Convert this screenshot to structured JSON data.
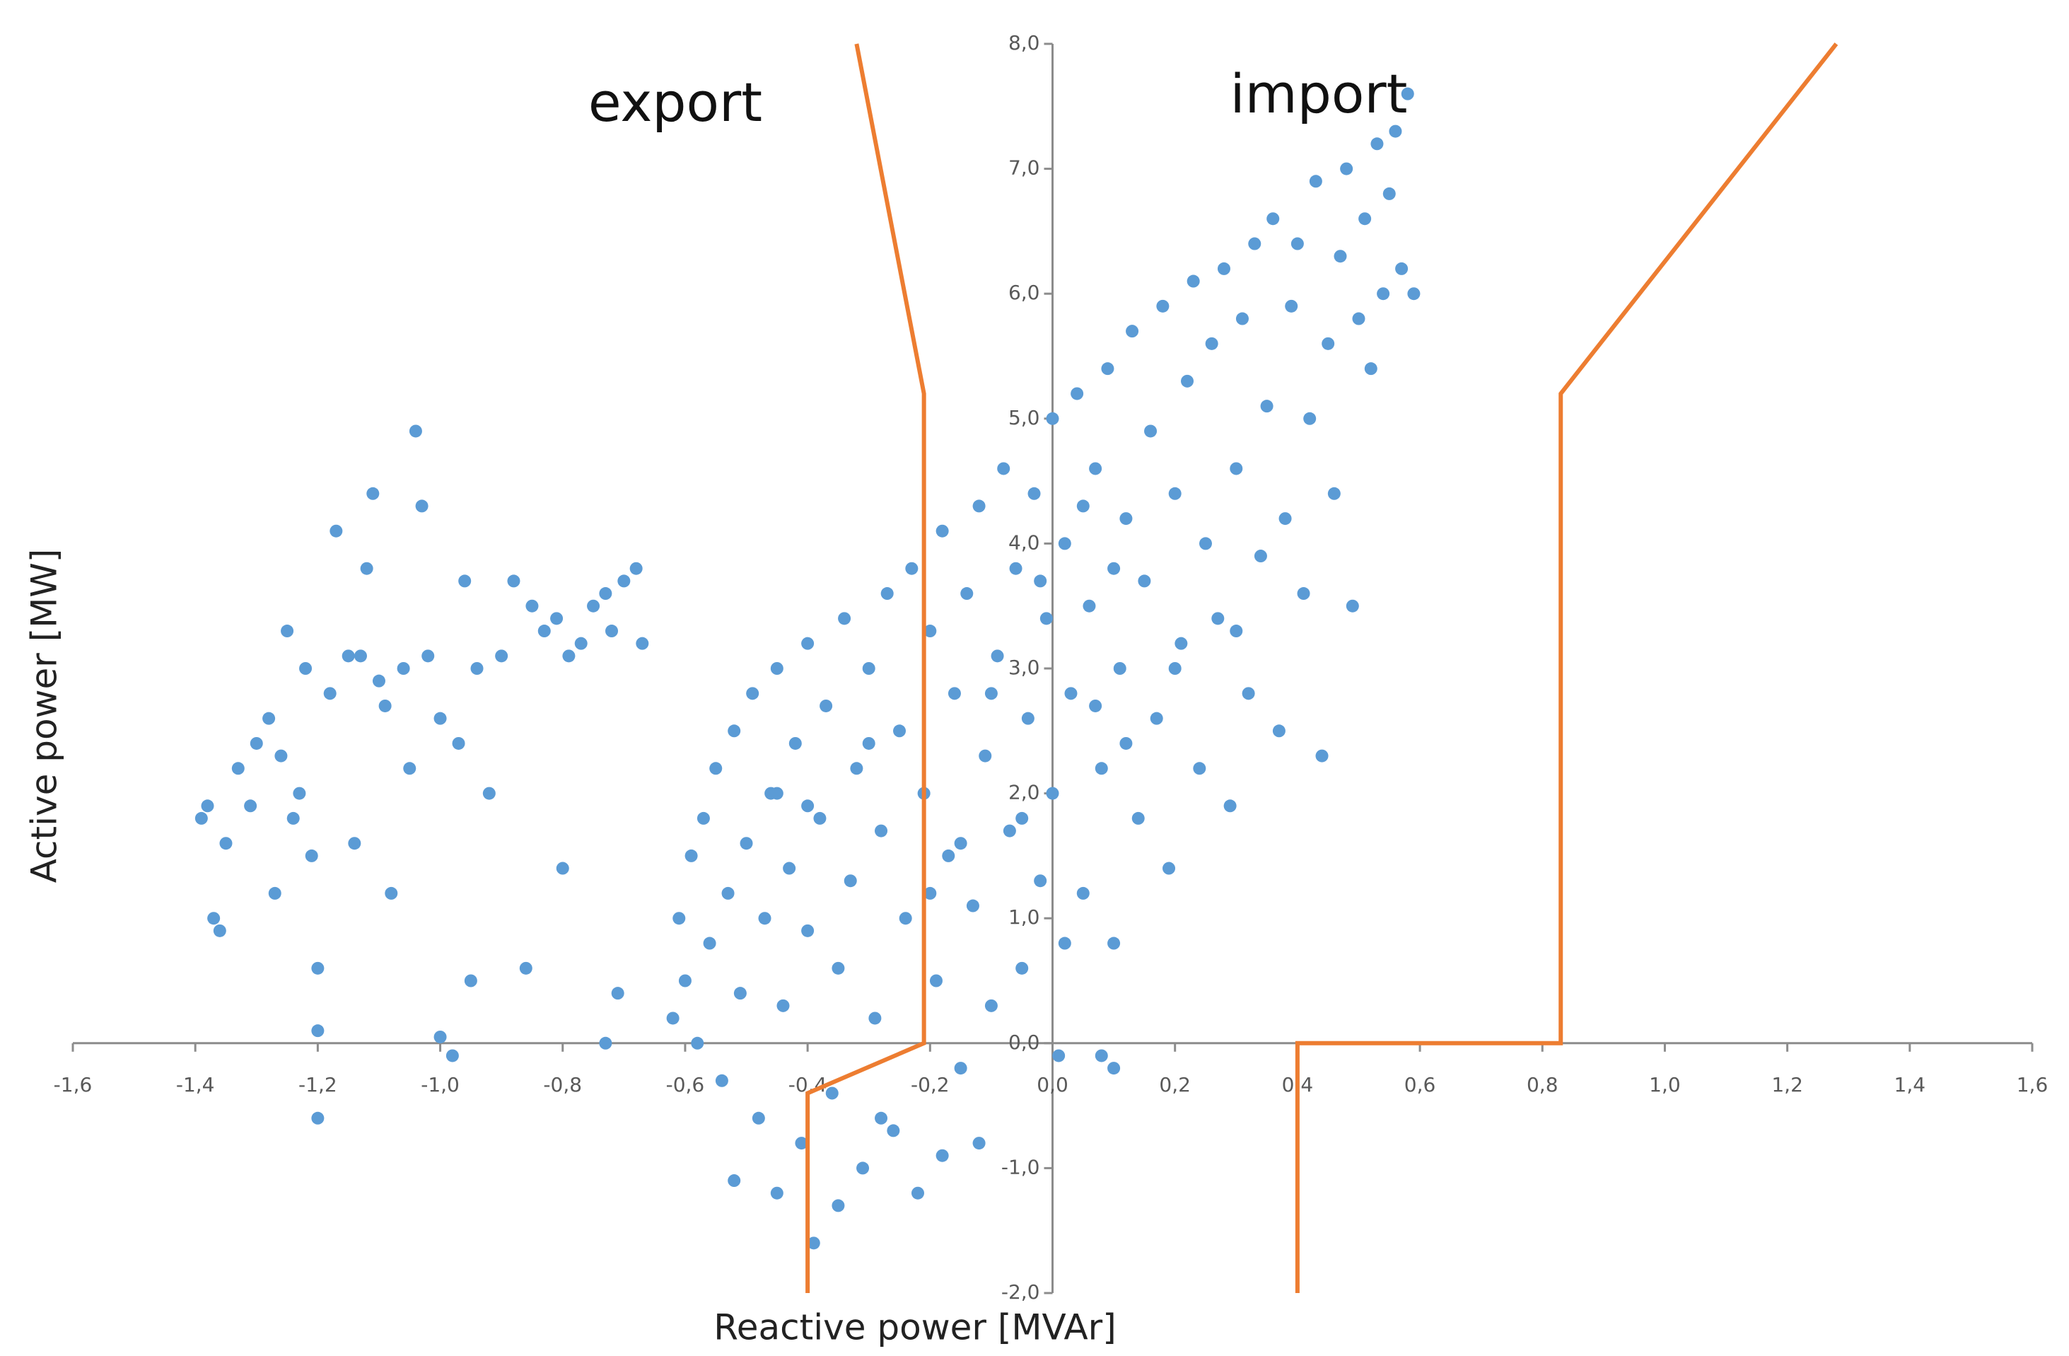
{
  "chart_data": {
    "type": "scatter",
    "xlabel": "Reactive power [MVAr]",
    "ylabel": "Active power [MW]",
    "annotations": [
      "export",
      "import"
    ],
    "color": "#5b9bd5",
    "x": [
      -1.39,
      -1.37,
      -1.36,
      -1.35,
      -1.33,
      -1.31,
      -1.3,
      -1.28,
      -1.27,
      -1.26,
      -1.25,
      -1.23,
      -1.22,
      -1.21,
      -1.2,
      -1.2,
      -1.2,
      -1.18,
      -1.17,
      -1.15,
      -1.14,
      -1.12,
      -1.11,
      -1.1,
      -1.08,
      -1.06,
      -1.05,
      -1.04,
      -1.03,
      -1.02,
      -1.0,
      -1.0,
      -0.98,
      -0.97,
      -0.96,
      -0.95,
      -0.94,
      -0.92,
      -0.9,
      -0.88,
      -0.86,
      -0.85,
      -0.83,
      -0.81,
      -0.8,
      -0.79,
      -0.77,
      -0.75,
      -0.73,
      -0.72,
      -0.7,
      -0.68,
      -0.67,
      -0.73,
      -0.71,
      -1.38,
      -1.24,
      -1.13,
      -1.09,
      -0.62,
      -0.61,
      -0.6,
      -0.59,
      -0.58,
      -0.57,
      -0.56,
      -0.55,
      -0.54,
      -0.53,
      -0.52,
      -0.52,
      -0.51,
      -0.5,
      -0.49,
      -0.48,
      -0.47,
      -0.46,
      -0.45,
      -0.45,
      -0.44,
      -0.43,
      -0.42,
      -0.41,
      -0.4,
      -0.4,
      -0.39,
      -0.38,
      -0.37,
      -0.36,
      -0.35,
      -0.34,
      -0.33,
      -0.32,
      -0.31,
      -0.3,
      -0.29,
      -0.28,
      -0.27,
      -0.26,
      -0.25,
      -0.24,
      -0.23,
      -0.22,
      -0.21,
      -0.2,
      -0.19,
      -0.18,
      -0.17,
      -0.16,
      -0.15,
      -0.14,
      -0.13,
      -0.12,
      -0.11,
      -0.1,
      -0.09,
      -0.08,
      -0.07,
      -0.06,
      -0.05,
      -0.04,
      -0.03,
      -0.02,
      -0.01,
      0.0,
      0.0,
      0.01,
      0.02,
      0.03,
      0.04,
      0.05,
      0.06,
      0.07,
      0.08,
      0.09,
      0.1,
      0.11,
      0.12,
      0.13,
      0.14,
      0.15,
      0.16,
      0.17,
      0.18,
      0.19,
      0.2,
      0.21,
      0.22,
      0.23,
      0.24,
      0.25,
      0.26,
      0.27,
      0.28,
      0.29,
      0.3,
      0.31,
      0.32,
      0.33,
      0.34,
      0.35,
      0.36,
      0.37,
      0.38,
      0.39,
      0.4,
      0.41,
      0.42,
      0.43,
      0.44,
      0.45,
      0.46,
      0.47,
      0.48,
      0.49,
      0.5,
      0.51,
      0.52,
      0.53,
      0.54,
      0.55,
      0.56,
      0.57,
      0.58,
      0.59,
      0.08,
      0.1,
      -0.12,
      -0.18,
      -0.28,
      -0.35,
      0.02,
      -0.05,
      0.07,
      -0.2,
      -0.3,
      -0.45,
      -0.4,
      -0.15,
      0.12,
      0.2,
      0.3,
      0.1,
      -0.1,
      0.05,
      -0.02
    ],
    "y": [
      1.8,
      1.0,
      0.9,
      1.6,
      2.2,
      1.9,
      2.4,
      2.6,
      1.2,
      2.3,
      3.3,
      2.0,
      3.0,
      1.5,
      0.6,
      -0.6,
      0.1,
      2.8,
      4.1,
      3.1,
      1.6,
      3.8,
      4.4,
      2.9,
      1.2,
      3.0,
      2.2,
      4.9,
      4.3,
      3.1,
      2.6,
      0.05,
      -0.1,
      2.4,
      3.7,
      0.5,
      3.0,
      2.0,
      3.1,
      3.7,
      0.6,
      3.5,
      3.3,
      3.4,
      1.4,
      3.1,
      3.2,
      3.5,
      3.6,
      3.3,
      3.7,
      3.8,
      3.2,
      0.0,
      0.4,
      1.9,
      1.8,
      3.1,
      2.7,
      0.2,
      1.0,
      0.5,
      1.5,
      0.0,
      1.8,
      0.8,
      2.2,
      -0.3,
      1.2,
      2.5,
      -1.1,
      0.4,
      1.6,
      2.8,
      -0.6,
      1.0,
      2.0,
      3.0,
      -1.2,
      0.3,
      1.4,
      2.4,
      -0.8,
      3.2,
      0.9,
      -1.6,
      1.8,
      2.7,
      -0.4,
      0.6,
      3.4,
      1.3,
      2.2,
      -1.0,
      3.0,
      0.2,
      1.7,
      3.6,
      -0.7,
      2.5,
      1.0,
      3.8,
      -1.2,
      2.0,
      3.3,
      0.5,
      4.1,
      1.5,
      2.8,
      -0.2,
      3.6,
      1.1,
      4.3,
      2.3,
      0.3,
      3.1,
      4.6,
      1.7,
      3.8,
      0.6,
      2.6,
      4.4,
      1.3,
      3.4,
      5.0,
      2.0,
      -0.1,
      4.0,
      2.8,
      5.2,
      1.2,
      3.5,
      4.6,
      2.2,
      5.4,
      0.8,
      3.0,
      4.2,
      5.7,
      1.8,
      3.7,
      4.9,
      2.6,
      5.9,
      1.4,
      4.4,
      3.2,
      5.3,
      6.1,
      2.2,
      4.0,
      5.6,
      3.4,
      6.2,
      1.9,
      4.6,
      5.8,
      2.8,
      6.4,
      3.9,
      5.1,
      6.6,
      2.5,
      4.2,
      5.9,
      6.4,
      3.6,
      5.0,
      6.9,
      2.3,
      5.6,
      4.4,
      6.3,
      7.0,
      3.5,
      5.8,
      6.6,
      5.4,
      7.2,
      6.0,
      6.8,
      7.3,
      6.2,
      7.6,
      6.0,
      -0.1,
      -0.2,
      -0.8,
      -0.9,
      -0.6,
      -1.3,
      0.8,
      1.8,
      2.7,
      1.2,
      2.4,
      2.0,
      1.9,
      1.6,
      2.4,
      3.0,
      3.3,
      3.8,
      2.8,
      4.3,
      3.7
    ],
    "boundaries": [
      {
        "color": "#ed7d31",
        "x": [
          -0.32,
          -0.21,
          -0.21,
          -0.4,
          -0.4
        ],
        "y": [
          8,
          5.2,
          0,
          -0.4,
          -2
        ]
      },
      {
        "color": "#ed7d31",
        "x": [
          1.28,
          0.83,
          0.83,
          0.4,
          0.4
        ],
        "y": [
          8,
          5.2,
          0,
          0,
          -2
        ]
      }
    ],
    "xlim": [
      -1.6,
      1.6
    ],
    "ylim": [
      -2,
      8
    ],
    "xticks": [
      {
        "value": -1.6,
        "label": "-1,6"
      },
      {
        "value": -1.4,
        "label": "-1,4"
      },
      {
        "value": -1.2,
        "label": "-1,2"
      },
      {
        "value": -1.0,
        "label": "-1,0"
      },
      {
        "value": -0.8,
        "label": "-0,8"
      },
      {
        "value": -0.6,
        "label": "-0,6"
      },
      {
        "value": -0.4,
        "label": "-0,4"
      },
      {
        "value": -0.2,
        "label": "-0,2"
      },
      {
        "value": 0,
        "label": "0,0"
      },
      {
        "value": 0.2,
        "label": "0,2"
      },
      {
        "value": 0.4,
        "label": "0,4"
      },
      {
        "value": 0.6,
        "label": "0,6"
      },
      {
        "value": 0.8,
        "label": "0,8"
      },
      {
        "value": 1.0,
        "label": "1,0"
      },
      {
        "value": 1.2,
        "label": "1,2"
      },
      {
        "value": 1.4,
        "label": "1,4"
      },
      {
        "value": 1.6,
        "label": "1,6"
      }
    ],
    "yticks": [
      {
        "value": -2,
        "label": "-2,0"
      },
      {
        "value": -1,
        "label": "-1,0"
      },
      {
        "value": 0,
        "label": "0,0"
      },
      {
        "value": 1,
        "label": "1,0"
      },
      {
        "value": 2,
        "label": "2,0"
      },
      {
        "value": 3,
        "label": "3,0"
      },
      {
        "value": 4,
        "label": "4,0"
      },
      {
        "value": 5,
        "label": "5,0"
      },
      {
        "value": 6,
        "label": "6,0"
      },
      {
        "value": 7,
        "label": "7,0"
      },
      {
        "value": 8,
        "label": "8,0"
      }
    ]
  }
}
